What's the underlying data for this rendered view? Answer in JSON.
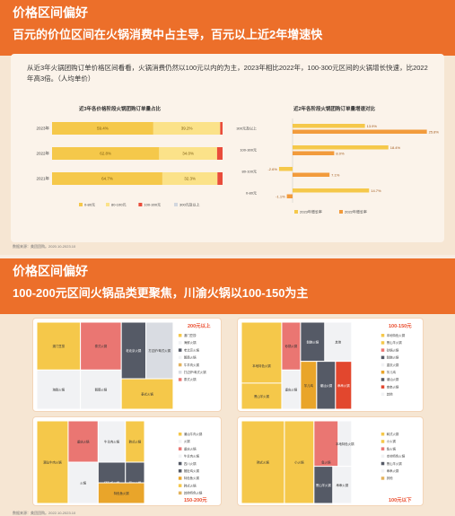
{
  "section1": {
    "title": "价格区间偏好",
    "subtitle": "百元的价位区间在火锅消费中占主导，百元以上近2年增速快",
    "description": "从近3年火锅团购订单价格区间看看，火锅消费仍然以100元以内的为主，2023年相比2022年，100-300元区间的火锅增长快速，比2022年高3倍。（人均单价）",
    "source": "数据来源：美团团购。2020.10-2023.10"
  },
  "section2": {
    "title": "价格区间偏好",
    "subtitle": "100-200元区间火锅品类更聚焦，川渝火锅以100-150为主",
    "source": "数据来源：美团团购。2022.10-2023.10"
  },
  "chart_data": [
    {
      "type": "bar",
      "title": "近3年各价格阶段火锅团购订单量占比",
      "categories": [
        "2023年",
        "2022年",
        "2021年"
      ],
      "series": [
        {
          "name": "0-80元",
          "values": [
            59.4,
            62.8,
            64.7
          ],
          "color": "#f5c84a"
        },
        {
          "name": "80-100元",
          "values": [
            39.2,
            34.0,
            32.3
          ],
          "color": "#fbe289"
        },
        {
          "name": "100-300元",
          "values": [
            1.4,
            3.2,
            3.0
          ],
          "color": "#e94c3b"
        },
        {
          "name": "300元及以上",
          "values": [
            0.0,
            0.0,
            0.0
          ],
          "color": "#d2d6de"
        }
      ],
      "labels": [
        [
          "59.4%",
          "39.2%"
        ],
        [
          "62.8%",
          "34.0%"
        ],
        [
          "64.7%",
          "32.3%"
        ]
      ]
    },
    {
      "type": "bar",
      "title": "近2年各阶段火锅团购订单量增速对比",
      "categories": [
        "300元及以上",
        "100-300元",
        "80-100元",
        "0-80元"
      ],
      "series": [
        {
          "name": "2023年增长率",
          "values": [
            13.9,
            18.4,
            -2.6,
            14.7
          ],
          "color": "#f5c84a"
        },
        {
          "name": "2022年增长率",
          "values": [
            25.8,
            8.0,
            7.1,
            -1.1
          ],
          "color": "#f29b3c"
        }
      ],
      "labels": [
        [
          "13.9%",
          "25.8%"
        ],
        [
          "18.4%",
          "8.0%"
        ],
        [
          "-2.6%",
          "7.1%"
        ],
        [
          "14.7%",
          "-1.1%"
        ]
      ]
    },
    {
      "type": "heatmap",
      "title": "200元以上",
      "cells": [
        {
          "label": "澳门豆捞",
          "color": "#f5c84a"
        },
        {
          "label": "泰式火锅",
          "color": "#ea7672"
        },
        {
          "label": "海鲜火锅",
          "color": "#f1f2f4"
        },
        {
          "label": "鹅肠火锅",
          "color": "#f1f2f4"
        },
        {
          "label": "老北京火锅",
          "color": "#555a66"
        },
        {
          "label": "打边炉/粤式火锅",
          "color": "#d9dce2"
        },
        {
          "label": "泰式火锅",
          "color": "#f5c84a"
        }
      ],
      "legend": [
        "澳门豆捞",
        "海鲜火锅",
        "老北京火锅",
        "鹅肠火锅",
        "牛羊肉火锅",
        "打边炉/粤式火锅",
        "泰式火锅"
      ]
    },
    {
      "type": "heatmap",
      "title": "100-150元",
      "cells": [
        {
          "label": "本地特色火锅",
          "color": "#f5c84a"
        },
        {
          "label": "砂锅火锅",
          "color": "#ea7672"
        },
        {
          "label": "鲜鲍火锅",
          "color": "#555a66"
        },
        {
          "label": "其他",
          "color": "#f1f2f4"
        },
        {
          "label": "重庆火锅",
          "color": "#f1f2f4"
        },
        {
          "label": "黑山羊火锅",
          "color": "#f5c84a"
        },
        {
          "label": "芋儿鸡",
          "color": "#e9a52a"
        },
        {
          "label": "潮汕火锅",
          "color": "#555a66"
        },
        {
          "label": "串串火锅",
          "color": "#e2472e"
        }
      ],
      "legend": [
        "本地特色火锅",
        "黑山羊火锅",
        "砂锅火锅",
        "鲜鲍火锅",
        "重庆火锅",
        "芋儿鸡",
        "潮汕火锅",
        "串串火锅",
        "其他"
      ]
    },
    {
      "type": "heatmap",
      "title": "150-200元",
      "cells": [
        {
          "label": "潮汕牛肉火锅",
          "color": "#f5c84a"
        },
        {
          "label": "重庆火锅",
          "color": "#ea7672"
        },
        {
          "label": "火锅",
          "color": "#f1f2f4"
        },
        {
          "label": "牛羊肉火锅",
          "color": "#f1f2f4"
        },
        {
          "label": "猪肚鸡火锅",
          "color": "#555a66"
        },
        {
          "label": "韩式火锅",
          "color": "#f5c84a"
        },
        {
          "label": "四川火锅",
          "color": "#555a66"
        },
        {
          "label": "特色鱼火锅",
          "color": "#e9a52a"
        }
      ],
      "legend": [
        "潮汕牛肉火锅",
        "火锅",
        "重庆火锅",
        "牛羊肉火锅",
        "四川火锅",
        "猪肚鸡火锅",
        "特色鱼火锅",
        "韩式火锅",
        "其他特色火锅"
      ]
    },
    {
      "type": "heatmap",
      "title": "100元以下",
      "cells": [
        {
          "label": "韩式火锅",
          "color": "#f5c84a"
        },
        {
          "label": "小火锅",
          "color": "#f5c84a"
        },
        {
          "label": "鱼火锅",
          "color": "#ea7672"
        },
        {
          "label": "本地特色火锅",
          "color": "#f1f2f4"
        },
        {
          "label": "黑山羊火锅",
          "color": "#555a66"
        },
        {
          "label": "串串火锅",
          "color": "#f1f2f4"
        }
      ],
      "legend": [
        "韩式火锅",
        "小火锅",
        "鱼火锅",
        "本地特色火锅",
        "黑山羊火锅",
        "串串火锅",
        "其他"
      ]
    }
  ]
}
